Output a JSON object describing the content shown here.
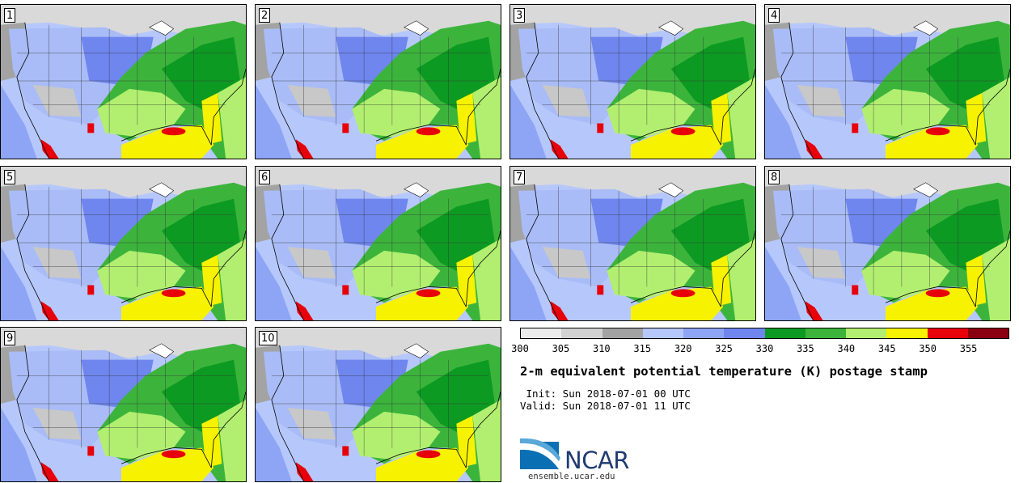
{
  "stamps": [
    {
      "label": "1"
    },
    {
      "label": "2"
    },
    {
      "label": "3"
    },
    {
      "label": "4"
    },
    {
      "label": "5"
    },
    {
      "label": "6"
    },
    {
      "label": "7"
    },
    {
      "label": "8"
    },
    {
      "label": "9"
    },
    {
      "label": "10"
    }
  ],
  "colorbar": {
    "colors": [
      "#ececec",
      "#d2d2d2",
      "#a3a3a3",
      "#b6c8fb",
      "#8ea5f6",
      "#6f86ef",
      "#0d9a22",
      "#3cb43c",
      "#b2ef70",
      "#f7f200",
      "#e7000a",
      "#8a0010"
    ],
    "ticks": [
      "300",
      "305",
      "310",
      "315",
      "320",
      "325",
      "330",
      "335",
      "340",
      "345",
      "350",
      "355"
    ]
  },
  "title": "2-m equivalent potential temperature (K) postage stamp",
  "init": " Init: Sun 2018-07-01 00 UTC",
  "valid": "Valid: Sun 2018-07-01 11 UTC",
  "logo": {
    "text": "NCAR",
    "url": "ensemble.ucar.edu"
  }
}
